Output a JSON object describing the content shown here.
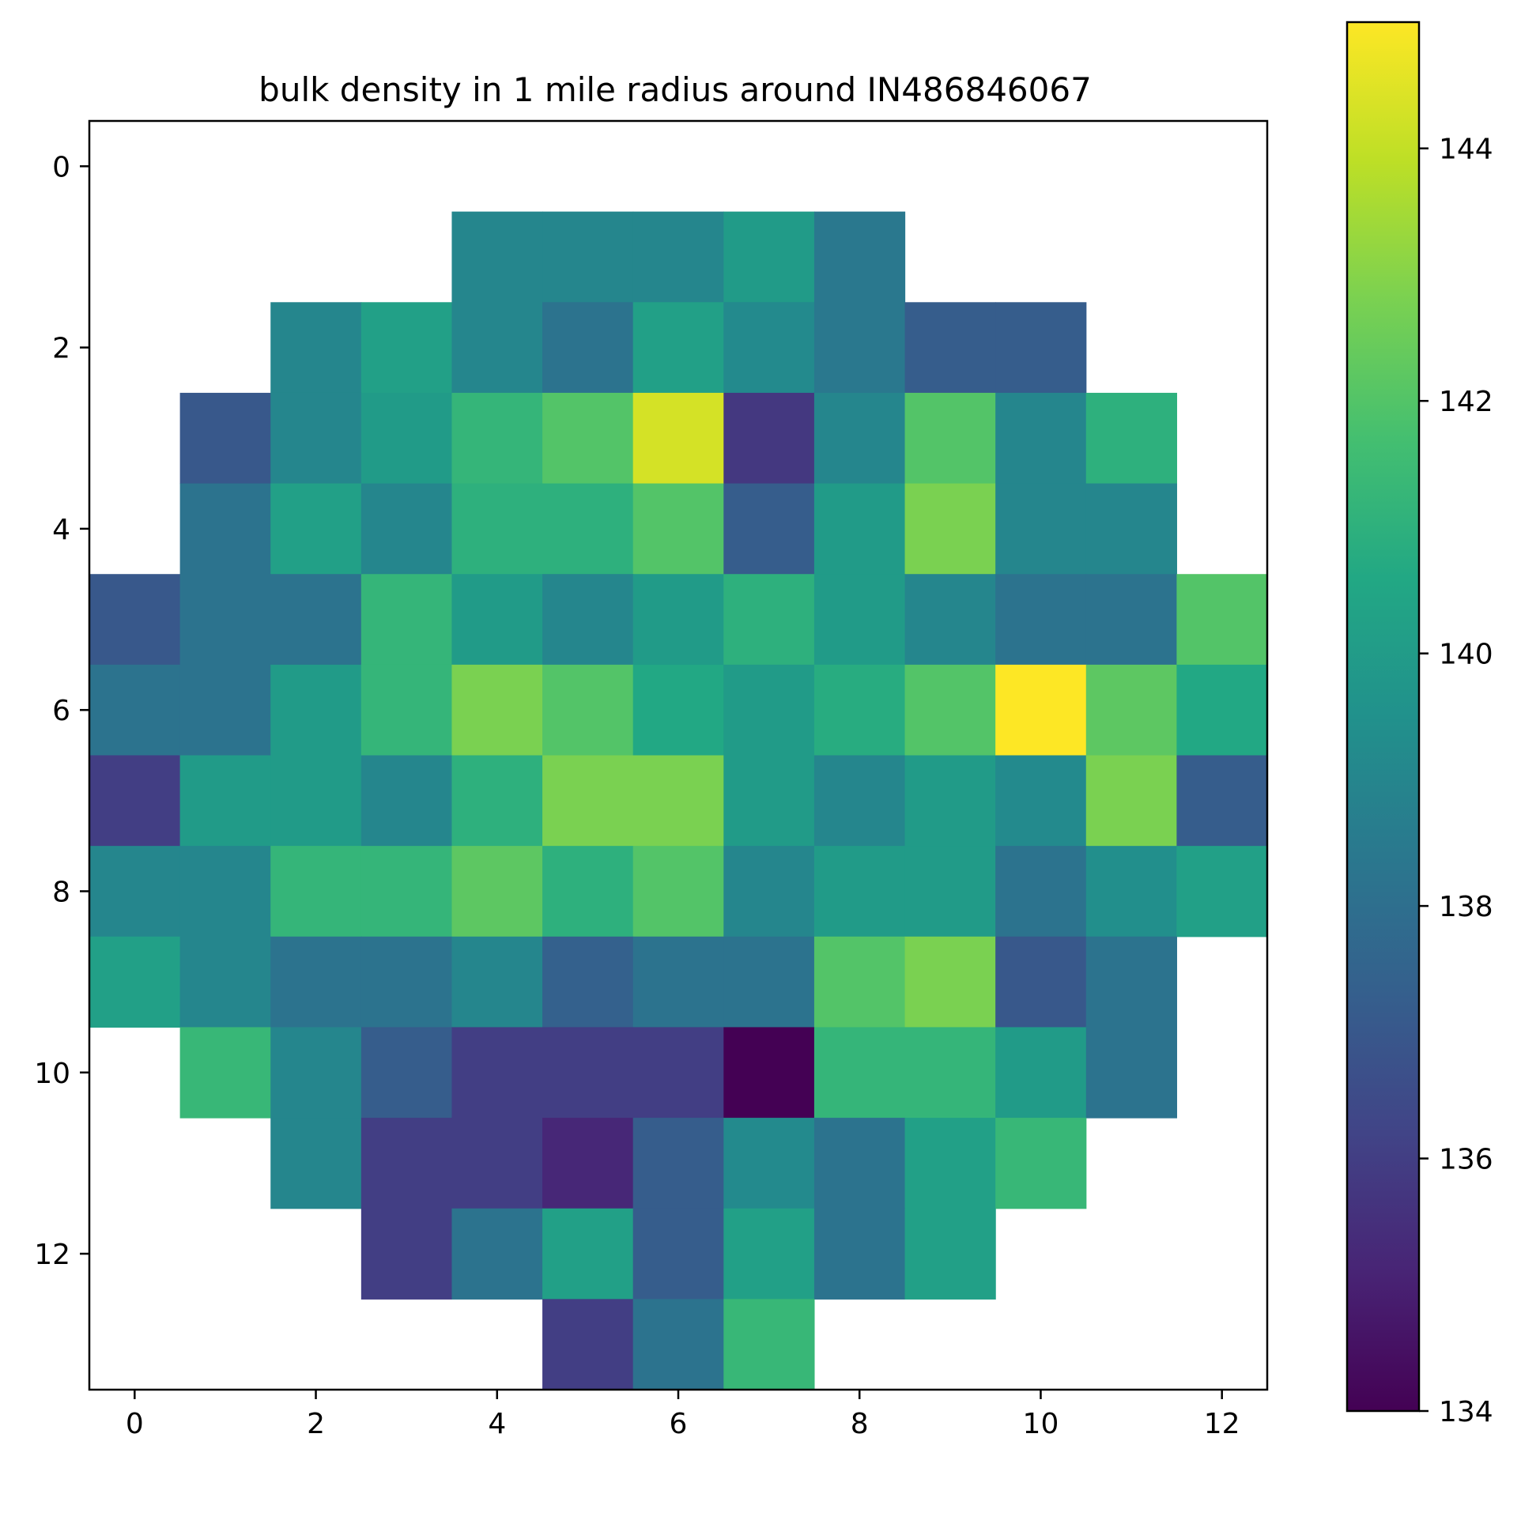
{
  "chart_data": {
    "type": "heatmap",
    "title": "bulk density in 1 mile radius around IN486846067",
    "xlabel": "",
    "ylabel": "",
    "colormap": "viridis",
    "color_range": [
      134,
      145
    ],
    "colorbar_ticks": [
      "134",
      "136",
      "138",
      "140",
      "142",
      "144"
    ],
    "x_ticks": [
      "0",
      "2",
      "4",
      "6",
      "8",
      "10",
      "12"
    ],
    "y_ticks": [
      "0",
      "2",
      "4",
      "6",
      "8",
      "10",
      "12"
    ],
    "n_cols": 13,
    "n_rows": 14,
    "grid": false,
    "values": [
      [
        null,
        null,
        null,
        null,
        null,
        null,
        null,
        null,
        null,
        null,
        null,
        null,
        null
      ],
      [
        null,
        null,
        null,
        null,
        139.0,
        139.0,
        139.0,
        140.0,
        138.4,
        null,
        null,
        null,
        null
      ],
      [
        null,
        null,
        139.0,
        140.2,
        139.0,
        138.2,
        140.2,
        139.2,
        138.4,
        137.2,
        137.2,
        null,
        null
      ],
      [
        null,
        137.0,
        139.0,
        140.0,
        141.2,
        142.0,
        144.3,
        135.8,
        139.0,
        142.0,
        139.0,
        141.0,
        null
      ],
      [
        null,
        138.2,
        140.2,
        139.0,
        141.0,
        141.0,
        142.0,
        137.2,
        140.0,
        142.8,
        139.0,
        139.0,
        null
      ],
      [
        137.0,
        138.2,
        138.2,
        141.2,
        140.0,
        139.0,
        140.0,
        141.0,
        140.0,
        139.0,
        138.2,
        138.2,
        142.0
      ],
      [
        138.2,
        138.2,
        140.0,
        141.2,
        142.8,
        142.0,
        140.6,
        140.0,
        140.8,
        142.0,
        145.0,
        142.2,
        140.6
      ],
      [
        136.0,
        140.0,
        140.0,
        139.0,
        141.0,
        142.8,
        142.8,
        140.0,
        139.0,
        140.0,
        139.2,
        142.8,
        137.2
      ],
      [
        139.0,
        139.0,
        141.2,
        141.2,
        142.2,
        141.0,
        142.0,
        139.0,
        140.0,
        140.0,
        138.2,
        139.4,
        140.2
      ],
      [
        140.2,
        139.0,
        138.2,
        138.2,
        139.0,
        137.4,
        138.2,
        138.2,
        142.0,
        142.8,
        137.0,
        138.2,
        null
      ],
      [
        null,
        141.3,
        139.0,
        137.2,
        136.0,
        136.0,
        136.0,
        134.0,
        141.2,
        141.2,
        140.0,
        138.2,
        null
      ],
      [
        null,
        null,
        139.0,
        136.0,
        136.0,
        135.2,
        137.2,
        139.2,
        138.2,
        140.2,
        141.3,
        null,
        null
      ],
      [
        null,
        null,
        null,
        136.0,
        138.2,
        140.2,
        137.2,
        140.2,
        138.2,
        140.2,
        null,
        null,
        null
      ],
      [
        null,
        null,
        null,
        null,
        null,
        136.0,
        138.2,
        141.3,
        null,
        null,
        null,
        null,
        null
      ]
    ]
  }
}
